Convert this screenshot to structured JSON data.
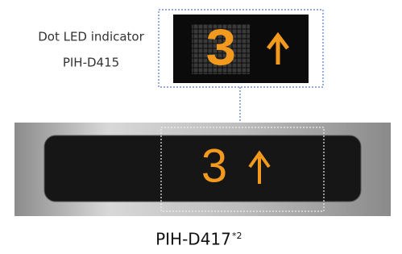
{
  "upper": {
    "caption_line1": "Dot LED indicator",
    "caption_line2": "PIH-D415",
    "digit": "3"
  },
  "lower": {
    "digit": "3",
    "model": "PIH-D417",
    "note": "*2"
  }
}
